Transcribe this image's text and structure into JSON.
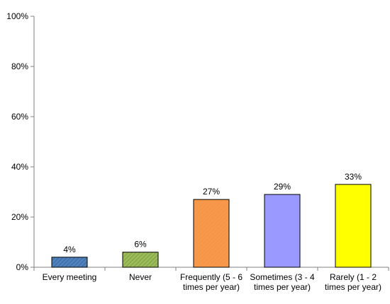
{
  "chart_data": {
    "type": "bar",
    "categories": [
      [
        "Every meeting"
      ],
      [
        "Never"
      ],
      [
        "Frequently (5 - 6",
        "times per year)"
      ],
      [
        "Sometimes (3 - 4",
        "times per year)"
      ],
      [
        "Rarely (1 - 2",
        "times per year)"
      ]
    ],
    "values": [
      4,
      6,
      27,
      29,
      33
    ],
    "value_labels": [
      "4%",
      "6%",
      "27%",
      "29%",
      "33%"
    ],
    "ylim": [
      0,
      100
    ],
    "yticks": [
      0,
      20,
      40,
      60,
      80,
      100
    ],
    "ytick_labels": [
      "0%",
      "20%",
      "40%",
      "60%",
      "80%",
      "100%"
    ],
    "grid": false,
    "legend": "none",
    "bar_styles": [
      {
        "color": "#4f81bd",
        "pattern": "hatch"
      },
      {
        "color": "#9bbb59",
        "pattern": "hatch"
      },
      {
        "color": "#f79646",
        "pattern": "hatch"
      },
      {
        "color": "#9999ff",
        "pattern": "solid"
      },
      {
        "color": "#ffff00",
        "pattern": "solid"
      }
    ],
    "axis_color": "#808080",
    "bar_border_color": "#000000"
  }
}
